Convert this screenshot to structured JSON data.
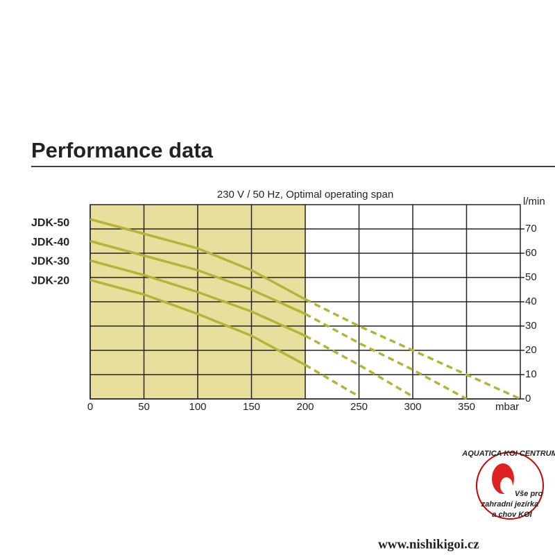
{
  "chart_data": {
    "type": "line",
    "title": "Performance data",
    "subtitle": "230 V / 50 Hz, Optimal operating span",
    "x_unit": "mbar",
    "y_unit": "l/min",
    "x": [
      0,
      50,
      100,
      150,
      200,
      250,
      300,
      350,
      400
    ],
    "xlim": [
      0,
      400
    ],
    "xticks": [
      0,
      50,
      100,
      150,
      200,
      250,
      300,
      350
    ],
    "ylim": [
      0,
      80
    ],
    "yticks": [
      0,
      10,
      20,
      30,
      40,
      50,
      60,
      70
    ],
    "grid": true,
    "optimal_span": [
      0,
      200
    ],
    "optimal_color": "#e8df9c",
    "dashed_from": 200,
    "series": [
      {
        "name": "JDK-50",
        "color": "#b3b53a",
        "values": [
          74,
          68,
          62,
          53,
          41,
          30,
          20,
          10,
          0
        ]
      },
      {
        "name": "JDK-40",
        "color": "#b3b53a",
        "values": [
          65,
          59,
          53,
          45,
          35,
          23,
          12,
          0,
          null
        ]
      },
      {
        "name": "JDK-30",
        "color": "#b3b53a",
        "values": [
          57,
          51,
          44,
          36,
          26,
          14,
          1,
          null,
          null
        ]
      },
      {
        "name": "JDK-20",
        "color": "#b3b53a",
        "values": [
          49,
          43,
          35,
          26,
          14,
          1,
          null,
          null,
          null
        ]
      }
    ]
  },
  "logo": {
    "name": "AQUATICA KOI CENTRUM",
    "slogan_1": "Vše pro",
    "slogan_2": "zahradní jezírka",
    "slogan_3": "a chov KOI",
    "website": "www.nishikigoi.cz"
  }
}
